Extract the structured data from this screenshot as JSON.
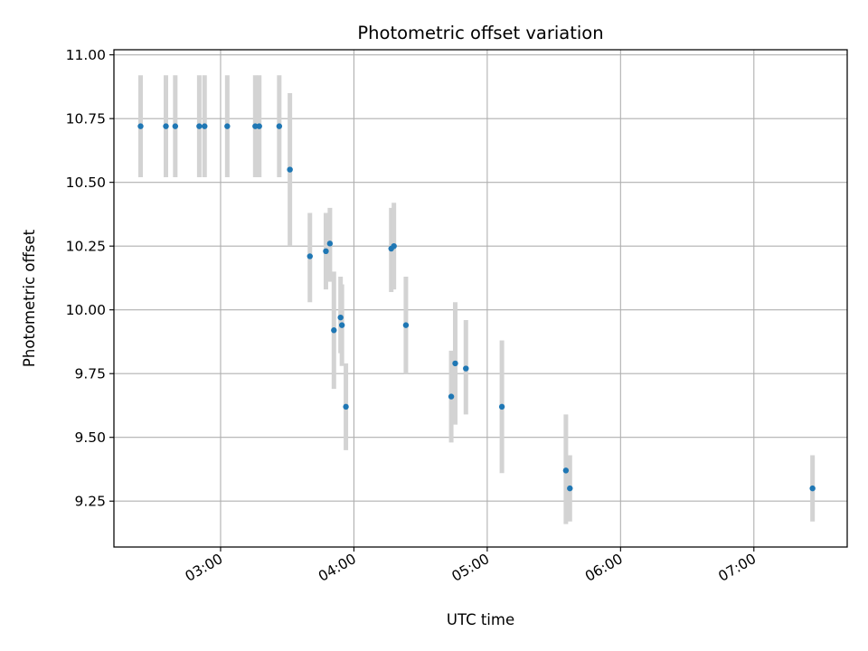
{
  "chart_data": {
    "type": "scatter",
    "title": "Photometric offset variation",
    "xlabel": "UTC time",
    "ylabel": "Photometric offset",
    "x_unit": "UTC hours",
    "xlim": [
      2.2,
      7.7
    ],
    "ylim": [
      9.07,
      11.02
    ],
    "xticks": [
      {
        "value": 3.0,
        "label": "03:00"
      },
      {
        "value": 4.0,
        "label": "04:00"
      },
      {
        "value": 5.0,
        "label": "05:00"
      },
      {
        "value": 6.0,
        "label": "06:00"
      },
      {
        "value": 7.0,
        "label": "07:00"
      }
    ],
    "yticks": [
      {
        "value": 9.25,
        "label": "9.25"
      },
      {
        "value": 9.5,
        "label": "9.50"
      },
      {
        "value": 9.75,
        "label": "9.75"
      },
      {
        "value": 10.0,
        "label": "10.00"
      },
      {
        "value": 10.25,
        "label": "10.25"
      },
      {
        "value": 10.5,
        "label": "10.50"
      },
      {
        "value": 10.75,
        "label": "10.75"
      },
      {
        "value": 11.0,
        "label": "11.00"
      }
    ],
    "grid": true,
    "marker_color": "#1f77b4",
    "errorbar_color": "#d3d3d3",
    "points": [
      {
        "x": 2.4,
        "y": 10.72,
        "ylow": 10.52,
        "yhigh": 10.92
      },
      {
        "x": 2.59,
        "y": 10.72,
        "ylow": 10.52,
        "yhigh": 10.92
      },
      {
        "x": 2.66,
        "y": 10.72,
        "ylow": 10.52,
        "yhigh": 10.92
      },
      {
        "x": 2.84,
        "y": 10.72,
        "ylow": 10.52,
        "yhigh": 10.92
      },
      {
        "x": 2.88,
        "y": 10.72,
        "ylow": 10.52,
        "yhigh": 10.92
      },
      {
        "x": 3.05,
        "y": 10.72,
        "ylow": 10.52,
        "yhigh": 10.92
      },
      {
        "x": 3.26,
        "y": 10.72,
        "ylow": 10.52,
        "yhigh": 10.92
      },
      {
        "x": 3.29,
        "y": 10.72,
        "ylow": 10.52,
        "yhigh": 10.92
      },
      {
        "x": 3.44,
        "y": 10.72,
        "ylow": 10.52,
        "yhigh": 10.92
      },
      {
        "x": 3.52,
        "y": 10.55,
        "ylow": 10.25,
        "yhigh": 10.85
      },
      {
        "x": 3.67,
        "y": 10.21,
        "ylow": 10.03,
        "yhigh": 10.38
      },
      {
        "x": 3.79,
        "y": 10.23,
        "ylow": 10.08,
        "yhigh": 10.38
      },
      {
        "x": 3.82,
        "y": 10.26,
        "ylow": 10.11,
        "yhigh": 10.4
      },
      {
        "x": 3.85,
        "y": 9.92,
        "ylow": 9.69,
        "yhigh": 10.15
      },
      {
        "x": 3.9,
        "y": 9.97,
        "ylow": 9.83,
        "yhigh": 10.13
      },
      {
        "x": 3.91,
        "y": 9.94,
        "ylow": 9.78,
        "yhigh": 10.1
      },
      {
        "x": 3.94,
        "y": 9.62,
        "ylow": 9.45,
        "yhigh": 9.79
      },
      {
        "x": 4.28,
        "y": 10.24,
        "ylow": 10.07,
        "yhigh": 10.4
      },
      {
        "x": 4.3,
        "y": 10.25,
        "ylow": 10.08,
        "yhigh": 10.42
      },
      {
        "x": 4.39,
        "y": 9.94,
        "ylow": 9.75,
        "yhigh": 10.13
      },
      {
        "x": 4.73,
        "y": 9.66,
        "ylow": 9.48,
        "yhigh": 9.84
      },
      {
        "x": 4.76,
        "y": 9.79,
        "ylow": 9.55,
        "yhigh": 10.03
      },
      {
        "x": 4.84,
        "y": 9.77,
        "ylow": 9.59,
        "yhigh": 9.96
      },
      {
        "x": 5.11,
        "y": 9.62,
        "ylow": 9.36,
        "yhigh": 9.88
      },
      {
        "x": 5.59,
        "y": 9.37,
        "ylow": 9.16,
        "yhigh": 9.59
      },
      {
        "x": 5.62,
        "y": 9.3,
        "ylow": 9.17,
        "yhigh": 9.43
      },
      {
        "x": 7.44,
        "y": 9.3,
        "ylow": 9.17,
        "yhigh": 9.43
      }
    ]
  }
}
